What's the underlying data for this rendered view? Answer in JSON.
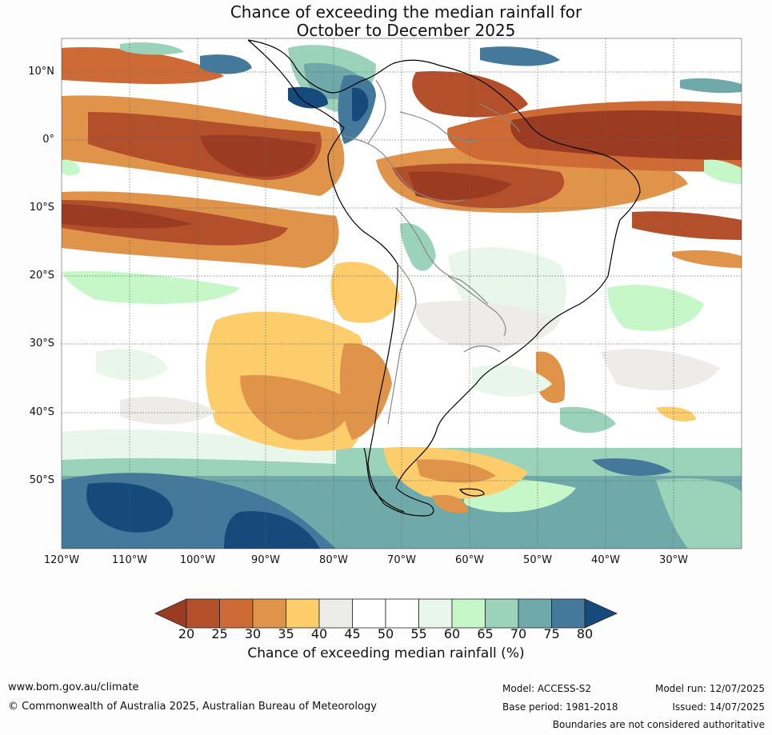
{
  "title": {
    "line1": "Chance of exceeding the median rainfall for",
    "line2": "October to December 2025"
  },
  "axes": {
    "y_labels": [
      "10°N",
      "0°",
      "10°S",
      "20°S",
      "30°S",
      "40°S",
      "50°S"
    ],
    "x_labels": [
      "120°W",
      "110°W",
      "100°W",
      "90°W",
      "80°W",
      "70°W",
      "60°W",
      "50°W",
      "40°W",
      "30°W"
    ]
  },
  "colorbar": {
    "ticks": [
      "20",
      "25",
      "30",
      "35",
      "40",
      "45",
      "50",
      "55",
      "60",
      "65",
      "70",
      "75",
      "80"
    ],
    "colors": [
      "#9b3b22",
      "#b3502b",
      "#cd6a35",
      "#e0944a",
      "#fdcd6c",
      "#eeece8",
      "#ffffff",
      "#ffffff",
      "#e9f7ea",
      "#c6f7c9",
      "#9bd2ba",
      "#6fa9aa",
      "#45799c",
      "#154a7a"
    ],
    "title": "Chance of exceeding median rainfall (%)"
  },
  "footer": {
    "url": "www.bom.gov.au/climate",
    "copyright": "© Commonwealth of Australia 2025, Australian Bureau of Meteorology",
    "model": "Model: ACCESS-S2",
    "base_period": "Base period: 1981-2018",
    "model_run": "Model run: 12/07/2025",
    "issued": "Issued: 14/07/2025",
    "disclaimer": "Boundaries are not considered authoritative"
  }
}
